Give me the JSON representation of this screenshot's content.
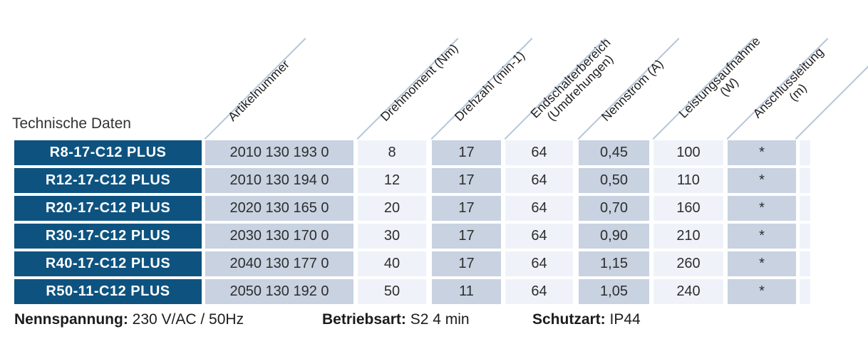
{
  "title": "Technische Daten",
  "colors": {
    "row_label_blue": "#0e5380",
    "cell_shade_dark": "#c8d2e1",
    "cell_shade_light": "#eff3f9",
    "diagonal_line": "#b5c6db",
    "text": "#2d2d2d"
  },
  "columns": [
    {
      "key": "artikelnummer",
      "label": "Artikelnummer"
    },
    {
      "key": "drehmoment",
      "label": "Drehmoment (Nm)"
    },
    {
      "key": "drehzahl",
      "label": "Drehzahl (min-1)"
    },
    {
      "key": "endschalterbereich",
      "label": "Endschalterbereich",
      "label2": "(Umdrehungen)"
    },
    {
      "key": "nennstrom",
      "label": "Nennstrom (A)"
    },
    {
      "key": "leistungsaufnahme",
      "label": "Leistungsaufnahme",
      "label2": "(W)"
    },
    {
      "key": "anschlussleitung",
      "label": "Anschlussleitung",
      "label2": "(m)"
    }
  ],
  "rows": [
    {
      "model": "R8-17-C12 PLUS",
      "artikelnummer": "2010 130 193 0",
      "drehmoment": "8",
      "drehzahl": "17",
      "endschalterbereich": "64",
      "nennstrom": "0,45",
      "leistungsaufnahme": "100",
      "anschlussleitung": "*"
    },
    {
      "model": "R12-17-C12 PLUS",
      "artikelnummer": "2010 130 194 0",
      "drehmoment": "12",
      "drehzahl": "17",
      "endschalterbereich": "64",
      "nennstrom": "0,50",
      "leistungsaufnahme": "110",
      "anschlussleitung": "*"
    },
    {
      "model": "R20-17-C12 PLUS",
      "artikelnummer": "2020 130 165 0",
      "drehmoment": "20",
      "drehzahl": "17",
      "endschalterbereich": "64",
      "nennstrom": "0,70",
      "leistungsaufnahme": "160",
      "anschlussleitung": "*"
    },
    {
      "model": "R30-17-C12 PLUS",
      "artikelnummer": "2030 130 170 0",
      "drehmoment": "30",
      "drehzahl": "17",
      "endschalterbereich": "64",
      "nennstrom": "0,90",
      "leistungsaufnahme": "210",
      "anschlussleitung": "*"
    },
    {
      "model": "R40-17-C12 PLUS",
      "artikelnummer": "2040 130 177 0",
      "drehmoment": "40",
      "drehzahl": "17",
      "endschalterbereich": "64",
      "nennstrom": "1,15",
      "leistungsaufnahme": "260",
      "anschlussleitung": "*"
    },
    {
      "model": "R50-11-C12 PLUS",
      "artikelnummer": "2050 130 192 0",
      "drehmoment": "50",
      "drehzahl": "11",
      "endschalterbereich": "64",
      "nennstrom": "1,05",
      "leistungsaufnahme": "240",
      "anschlussleitung": "*"
    }
  ],
  "footer": [
    {
      "label": "Nennspannung:",
      "value": "230 V/AC / 50Hz"
    },
    {
      "label": "Betriebsart:",
      "value": "S2 4 min"
    },
    {
      "label": "Schutzart:",
      "value": "IP44"
    }
  ]
}
